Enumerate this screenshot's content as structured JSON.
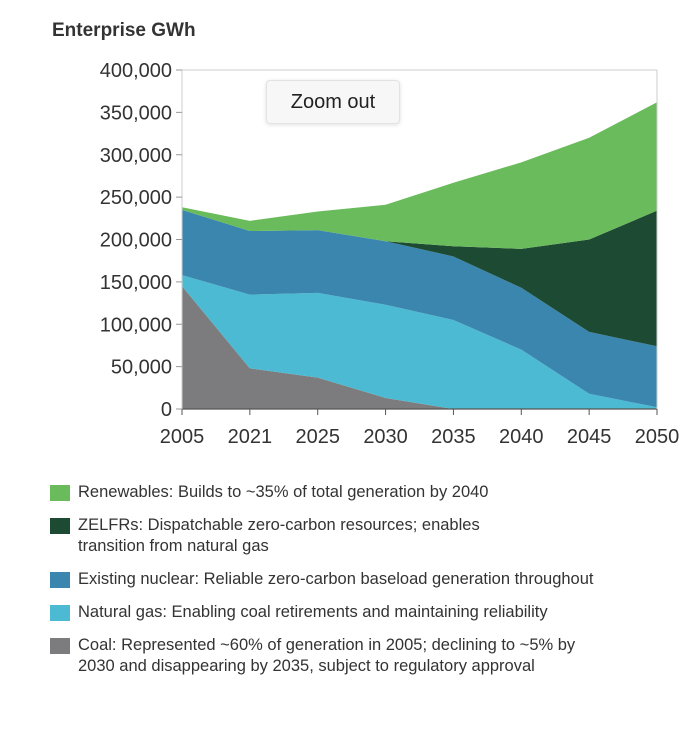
{
  "chart_data": {
    "type": "area",
    "stacked": true,
    "title": "Enterprise GWh",
    "x": [
      "2005",
      "2021",
      "2025",
      "2030",
      "2035",
      "2040",
      "2045",
      "2050"
    ],
    "ylim": [
      0,
      400000
    ],
    "yticks": [
      "0",
      "50,000",
      "100,000",
      "150,000",
      "200,000",
      "250,000",
      "300,000",
      "350,000",
      "400,000"
    ],
    "series": [
      {
        "name": "Coal",
        "color": "#7c7c7e",
        "values": [
          145000,
          48000,
          37000,
          13000,
          0,
          0,
          0,
          0
        ]
      },
      {
        "name": "Natural gas",
        "color": "#4cbad2",
        "values": [
          13000,
          87000,
          100000,
          110000,
          105000,
          70000,
          18000,
          2000
        ]
      },
      {
        "name": "Existing nuclear",
        "color": "#3a86ae",
        "values": [
          77000,
          75000,
          74000,
          75000,
          75000,
          73000,
          73000,
          72000
        ]
      },
      {
        "name": "ZELFRs",
        "color": "#1d4a33",
        "values": [
          0,
          0,
          0,
          0,
          12000,
          46000,
          109000,
          160000
        ]
      },
      {
        "name": "Renewables",
        "color": "#6abb5b",
        "values": [
          3000,
          12000,
          22000,
          43000,
          75000,
          102000,
          120000,
          128000
        ]
      }
    ],
    "legend": [
      {
        "label": "Renewables: Builds to ~35% of total generation by 2040",
        "color": "#6abb5b"
      },
      {
        "label": "ZELFRs: Dispatchable zero-carbon resources; enables transition from natural gas",
        "color": "#1d4a33"
      },
      {
        "label": "Existing nuclear: Reliable zero-carbon baseload generation throughout",
        "color": "#3a86ae"
      },
      {
        "label": "Natural gas: Enabling coal retirements and maintaining reliability",
        "color": "#4cbad2"
      },
      {
        "label": "Coal: Represented ~60% of generation in 2005; declining to ~5% by 2030 and disappearing by 2035, subject to regulatory approval",
        "color": "#7c7c7e"
      }
    ],
    "legend_position": "bottom",
    "grid": false
  },
  "zoom_out_label": "Zoom out"
}
